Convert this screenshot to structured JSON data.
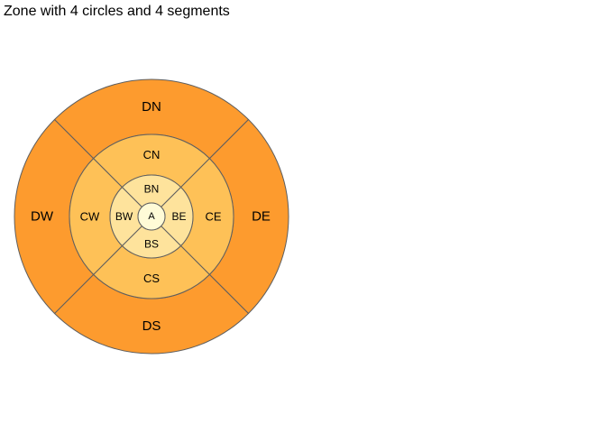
{
  "title": "Zone with 4 circles and 4 segments",
  "colors": {
    "ring_d": "#fd9b2e",
    "ring_c": "#fec157",
    "ring_b": "#fee39c",
    "center": "#fffbd7",
    "stroke": "#5f5f5f"
  },
  "center_zone": {
    "label": "A"
  },
  "rings": [
    {
      "id": "B",
      "segments": {
        "north": "BN",
        "east": "BE",
        "south": "BS",
        "west": "BW"
      }
    },
    {
      "id": "C",
      "segments": {
        "north": "CN",
        "east": "CE",
        "south": "CS",
        "west": "CW"
      }
    },
    {
      "id": "D",
      "segments": {
        "north": "DN",
        "east": "DE",
        "south": "DS",
        "west": "DW"
      }
    }
  ]
}
